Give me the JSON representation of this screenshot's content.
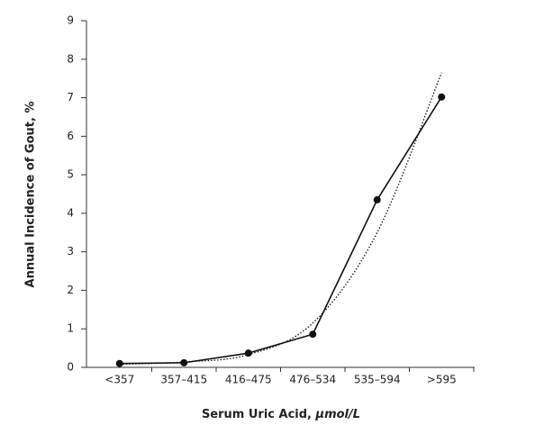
{
  "chart_data": {
    "type": "line",
    "x_label": [
      "Serum Uric Acid,",
      "μmol/L"
    ],
    "y_label": "Annual Incidence of Gout, %",
    "categories": [
      "<357",
      "357–415",
      "416–475",
      "476–534",
      "535–594",
      ">595"
    ],
    "series": [
      {
        "color": "#111111",
        "style": "solid",
        "markers": true,
        "values": [
          0.1,
          0.12,
          0.37,
          0.86,
          4.35,
          7.02
        ]
      },
      {
        "color": "#111111",
        "style": "dotted",
        "markers": false,
        "values": [
          0.08,
          0.14,
          0.33,
          1.15,
          3.5,
          7.65
        ]
      }
    ],
    "ylim": [
      0,
      9
    ],
    "yticks": [
      0,
      1,
      2,
      3,
      4,
      5,
      6,
      7,
      8,
      9
    ],
    "grid": false
  }
}
